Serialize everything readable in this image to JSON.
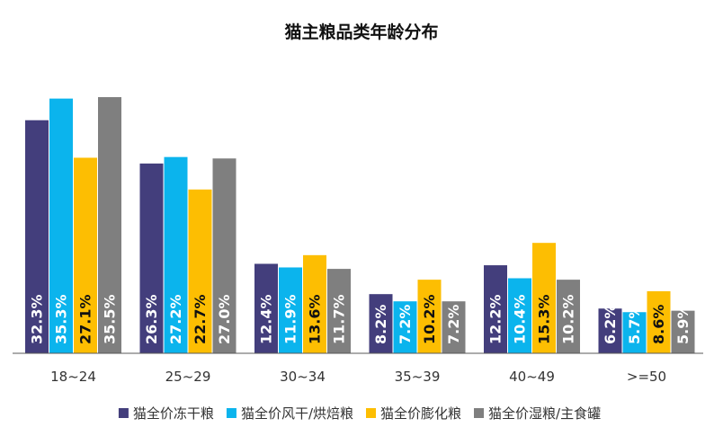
{
  "chart_data": {
    "type": "bar",
    "title": "猫主粮品类年龄分布",
    "xlabel": "",
    "ylabel": "",
    "ylim": [
      0,
      37
    ],
    "grid": false,
    "legend_position": "bottom",
    "categories": [
      "18~24",
      "25~29",
      "30~34",
      "35~39",
      "40~49",
      ">=50"
    ],
    "series": [
      {
        "name": "猫全价冻干粮",
        "color": "#433E7C",
        "label_color": "#FFFFFF",
        "values": [
          32.3,
          26.3,
          12.4,
          8.2,
          12.2,
          6.2
        ],
        "labels": [
          "32.3%",
          "26.3%",
          "12.4%",
          "8.2%",
          "12.2%",
          "6.2%"
        ]
      },
      {
        "name": "猫全价风干/烘焙粮",
        "color": "#0BB4ED",
        "label_color": "#FFFFFF",
        "values": [
          35.3,
          27.2,
          11.9,
          7.2,
          10.4,
          5.7
        ],
        "labels": [
          "35.3%",
          "27.2%",
          "11.9%",
          "7.2%",
          "10.4%",
          "5.7%"
        ]
      },
      {
        "name": "猫全价膨化粮",
        "color": "#FDBE02",
        "label_color": "#111111",
        "values": [
          27.1,
          22.7,
          13.6,
          10.2,
          15.3,
          8.6
        ],
        "labels": [
          "27.1%",
          "22.7%",
          "13.6%",
          "10.2%",
          "15.3%",
          "8.6%"
        ]
      },
      {
        "name": "猫全价湿粮/主食罐",
        "color": "#7F7F7F",
        "label_color": "#FFFFFF",
        "values": [
          35.5,
          27.0,
          11.7,
          7.2,
          10.2,
          5.9
        ],
        "labels": [
          "35.5%",
          "27.0%",
          "11.7%",
          "7.2%",
          "10.2%",
          "5.9%"
        ]
      }
    ]
  }
}
